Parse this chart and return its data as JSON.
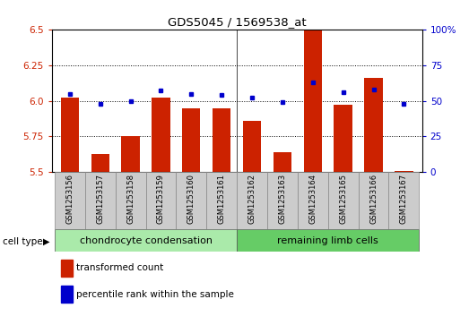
{
  "title": "GDS5045 / 1569538_at",
  "samples": [
    "GSM1253156",
    "GSM1253157",
    "GSM1253158",
    "GSM1253159",
    "GSM1253160",
    "GSM1253161",
    "GSM1253162",
    "GSM1253163",
    "GSM1253164",
    "GSM1253165",
    "GSM1253166",
    "GSM1253167"
  ],
  "red_values": [
    6.02,
    5.63,
    5.75,
    6.02,
    5.95,
    5.95,
    5.86,
    5.64,
    6.5,
    5.97,
    6.16,
    5.51
  ],
  "blue_values": [
    55,
    48,
    50,
    57,
    55,
    54,
    52,
    49,
    63,
    56,
    58,
    48
  ],
  "ylim_left": [
    5.5,
    6.5
  ],
  "ylim_right": [
    0,
    100
  ],
  "yticks_left": [
    5.5,
    5.75,
    6.0,
    6.25,
    6.5
  ],
  "yticks_right": [
    0,
    25,
    50,
    75,
    100
  ],
  "ytick_labels_right": [
    "0",
    "25",
    "50",
    "75",
    "100%"
  ],
  "hlines": [
    5.75,
    6.0,
    6.25
  ],
  "group1_label": "chondrocyte condensation",
  "group2_label": "remaining limb cells",
  "group1_count": 6,
  "cell_type_label": "cell type",
  "legend_red": "transformed count",
  "legend_blue": "percentile rank within the sample",
  "bar_color": "#cc2200",
  "blue_color": "#0000cc",
  "group1_color": "#aaeaaa",
  "group2_color": "#66cc66",
  "sample_box_color": "#cccccc",
  "tick_color_left": "#cc2200",
  "tick_color_right": "#0000cc",
  "bar_width": 0.6,
  "baseline": 5.5
}
